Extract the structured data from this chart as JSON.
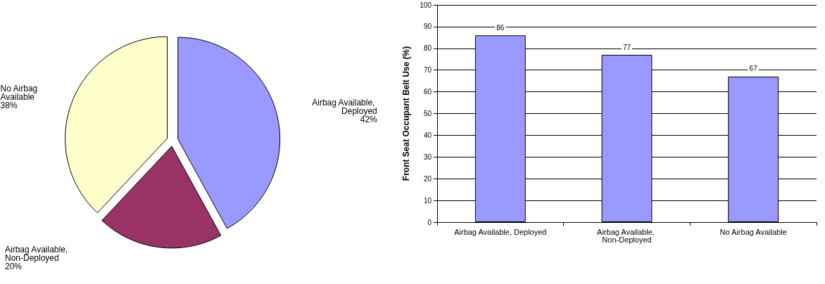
{
  "chart_data": [
    {
      "type": "pie",
      "categories": [
        "Airbag Available, Deployed",
        "Airbag Available, Non-Deployed",
        "No Airbag Available"
      ],
      "values": [
        42,
        20,
        38
      ],
      "value_labels": [
        "42%",
        "20%",
        "38%"
      ],
      "colors": [
        "#9999ff",
        "#993366",
        "#ffffcc"
      ],
      "legend": false
    },
    {
      "type": "bar",
      "categories": [
        "Airbag Available, Deployed",
        "Airbag Available, Non-Deployed",
        "No Airbag Available"
      ],
      "values": [
        86,
        77,
        67
      ],
      "color": "#9999ff",
      "ylabel": "Front Seat Occupant Belt Use (%)",
      "ylim": [
        0,
        100
      ],
      "yticks": [
        0,
        10,
        20,
        30,
        40,
        50,
        60,
        70,
        80,
        90,
        100
      ],
      "grid": "y",
      "data_labels": true,
      "legend": false
    }
  ]
}
